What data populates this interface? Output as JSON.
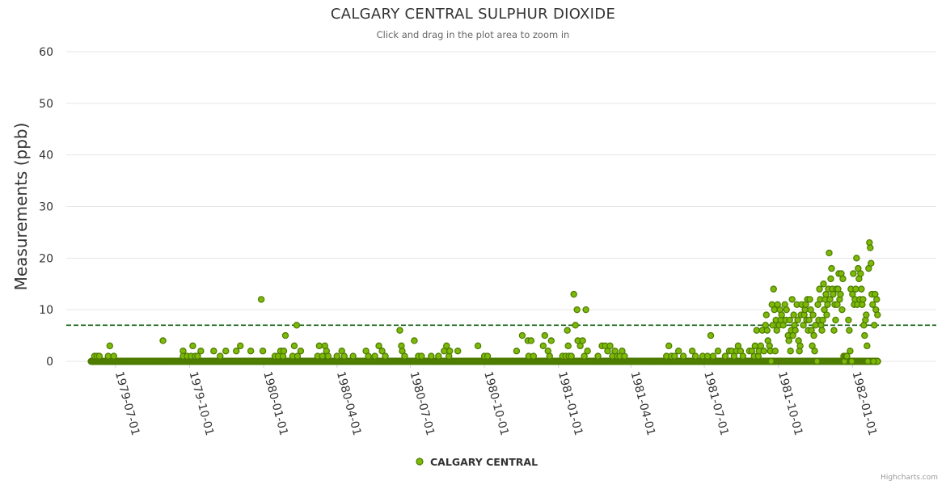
{
  "chart_data": {
    "type": "scatter",
    "title": "CALGARY CENTRAL SULPHUR DIOXIDE",
    "subtitle": "Click and drag in the plot area to zoom in",
    "ylabel": "Measurements (ppb)",
    "xlabel": "",
    "ylim": [
      0,
      60
    ],
    "yticks": [
      0,
      10,
      20,
      30,
      40,
      50,
      60
    ],
    "xlim": [
      "1979-05-01",
      "1982-04-15"
    ],
    "xticks": [
      "1979-07-01",
      "1979-10-01",
      "1980-01-01",
      "1980-04-01",
      "1980-07-01",
      "1980-10-01",
      "1981-01-01",
      "1981-04-01",
      "1981-07-01",
      "1981-10-01",
      "1982-01-01"
    ],
    "grid": true,
    "legend": {
      "position": "bottom-center"
    },
    "threshold_line": {
      "y": 7,
      "style": "dashed",
      "color": "#0a5c0a"
    },
    "colors": {
      "marker_fill": "#7cb908",
      "marker_stroke": "#4d7a00"
    },
    "series": [
      {
        "name": "CALGARY CENTRAL",
        "points": [
          [
            "1979-06-05",
            1
          ],
          [
            "1979-06-08",
            1
          ],
          [
            "1979-06-11",
            1
          ],
          [
            "1979-06-24",
            3
          ],
          [
            "1979-06-22",
            1
          ],
          [
            "1979-06-29",
            1
          ],
          [
            "1979-08-29",
            4
          ],
          [
            "1979-09-23",
            2
          ],
          [
            "1979-09-23",
            1
          ],
          [
            "1979-09-28",
            1
          ],
          [
            "1979-10-03",
            1
          ],
          [
            "1979-10-05",
            3
          ],
          [
            "1979-10-08",
            1
          ],
          [
            "1979-10-11",
            1
          ],
          [
            "1979-10-15",
            2
          ],
          [
            "1979-10-31",
            2
          ],
          [
            "1979-11-08",
            1
          ],
          [
            "1979-11-15",
            2
          ],
          [
            "1979-11-28",
            2
          ],
          [
            "1979-12-03",
            3
          ],
          [
            "1979-12-16",
            2
          ],
          [
            "1979-12-29",
            12
          ],
          [
            "1979-12-31",
            2
          ],
          [
            "1980-01-15",
            1
          ],
          [
            "1980-01-19",
            1
          ],
          [
            "1980-01-22",
            2
          ],
          [
            "1980-01-25",
            1
          ],
          [
            "1980-01-26",
            2
          ],
          [
            "1980-01-28",
            5
          ],
          [
            "1980-02-06",
            1
          ],
          [
            "1980-02-08",
            3
          ],
          [
            "1980-02-11",
            7
          ],
          [
            "1980-02-12",
            1
          ],
          [
            "1980-02-16",
            2
          ],
          [
            "1980-03-08",
            1
          ],
          [
            "1980-03-10",
            3
          ],
          [
            "1980-03-14",
            1
          ],
          [
            "1980-03-17",
            3
          ],
          [
            "1980-03-19",
            2
          ],
          [
            "1980-03-21",
            1
          ],
          [
            "1980-04-01",
            1
          ],
          [
            "1980-04-07",
            2
          ],
          [
            "1980-04-10",
            1
          ],
          [
            "1980-04-21",
            1
          ],
          [
            "1980-05-07",
            2
          ],
          [
            "1980-05-10",
            1
          ],
          [
            "1980-05-18",
            1
          ],
          [
            "1980-05-23",
            3
          ],
          [
            "1980-05-27",
            2
          ],
          [
            "1980-05-31",
            1
          ],
          [
            "1980-06-18",
            6
          ],
          [
            "1980-06-20",
            3
          ],
          [
            "1980-06-21",
            2
          ],
          [
            "1980-06-24",
            1
          ],
          [
            "1980-07-06",
            4
          ],
          [
            "1980-07-11",
            1
          ],
          [
            "1980-07-15",
            1
          ],
          [
            "1980-07-27",
            1
          ],
          [
            "1980-08-05",
            1
          ],
          [
            "1980-08-12",
            2
          ],
          [
            "1980-08-15",
            3
          ],
          [
            "1980-08-18",
            1
          ],
          [
            "1980-08-19",
            2
          ],
          [
            "1980-08-29",
            2
          ],
          [
            "1980-09-23",
            3
          ],
          [
            "1980-10-01",
            1
          ],
          [
            "1980-10-05",
            1
          ],
          [
            "1980-11-10",
            2
          ],
          [
            "1980-11-17",
            5
          ],
          [
            "1980-11-24",
            4
          ],
          [
            "1980-11-25",
            1
          ],
          [
            "1980-11-28",
            4
          ],
          [
            "1980-12-01",
            1
          ],
          [
            "1980-12-13",
            3
          ],
          [
            "1980-12-15",
            5
          ],
          [
            "1980-12-19",
            2
          ],
          [
            "1980-12-21",
            1
          ],
          [
            "1980-12-23",
            4
          ],
          [
            "1981-01-06",
            1
          ],
          [
            "1981-01-10",
            1
          ],
          [
            "1981-01-12",
            6
          ],
          [
            "1981-01-13",
            3
          ],
          [
            "1981-01-14",
            1
          ],
          [
            "1981-01-17",
            1
          ],
          [
            "1981-01-20",
            13
          ],
          [
            "1981-01-22",
            7
          ],
          [
            "1981-01-24",
            10
          ],
          [
            "1981-01-25",
            4
          ],
          [
            "1981-01-28",
            3
          ],
          [
            "1981-01-31",
            4
          ],
          [
            "1981-02-02",
            1
          ],
          [
            "1981-02-04",
            10
          ],
          [
            "1981-02-06",
            2
          ],
          [
            "1981-02-19",
            1
          ],
          [
            "1981-02-24",
            3
          ],
          [
            "1981-02-28",
            3
          ],
          [
            "1981-03-03",
            2
          ],
          [
            "1981-03-06",
            3
          ],
          [
            "1981-03-09",
            1
          ],
          [
            "1981-03-12",
            2
          ],
          [
            "1981-03-15",
            1
          ],
          [
            "1981-03-18",
            1
          ],
          [
            "1981-03-21",
            2
          ],
          [
            "1981-03-24",
            1
          ],
          [
            "1981-05-15",
            1
          ],
          [
            "1981-05-18",
            3
          ],
          [
            "1981-05-21",
            1
          ],
          [
            "1981-05-25",
            1
          ],
          [
            "1981-05-30",
            2
          ],
          [
            "1981-06-05",
            1
          ],
          [
            "1981-06-16",
            2
          ],
          [
            "1981-06-20",
            1
          ],
          [
            "1981-06-29",
            1
          ],
          [
            "1981-07-05",
            1
          ],
          [
            "1981-07-09",
            5
          ],
          [
            "1981-07-12",
            1
          ],
          [
            "1981-07-18",
            2
          ],
          [
            "1981-07-27",
            1
          ],
          [
            "1981-08-01",
            2
          ],
          [
            "1981-08-04",
            2
          ],
          [
            "1981-08-07",
            1
          ],
          [
            "1981-08-10",
            2
          ],
          [
            "1981-08-12",
            3
          ],
          [
            "1981-08-15",
            2
          ],
          [
            "1981-08-18",
            1
          ],
          [
            "1981-08-26",
            2
          ],
          [
            "1981-08-29",
            2
          ],
          [
            "1981-09-01",
            1
          ],
          [
            "1981-09-02",
            3
          ],
          [
            "1981-09-04",
            6
          ],
          [
            "1981-09-06",
            1
          ],
          [
            "1981-09-07",
            2
          ],
          [
            "1981-09-09",
            3
          ],
          [
            "1981-09-11",
            6
          ],
          [
            "1981-09-13",
            2
          ],
          [
            "1981-09-15",
            7
          ],
          [
            "1981-09-16",
            9
          ],
          [
            "1981-09-17",
            6
          ],
          [
            "1981-09-18",
            4
          ],
          [
            "1981-09-20",
            3
          ],
          [
            "1981-09-21",
            2
          ],
          [
            "1981-09-22",
            0
          ],
          [
            "1981-09-23",
            11
          ],
          [
            "1981-09-24",
            7
          ],
          [
            "1981-09-25",
            14
          ],
          [
            "1981-09-26",
            10
          ],
          [
            "1981-09-27",
            2
          ],
          [
            "1981-09-28",
            8
          ],
          [
            "1981-09-29",
            6
          ],
          [
            "1981-09-30",
            11
          ],
          [
            "1981-10-02",
            7
          ],
          [
            "1981-10-03",
            10
          ],
          [
            "1981-10-04",
            8
          ],
          [
            "1981-10-05",
            9
          ],
          [
            "1981-10-07",
            7
          ],
          [
            "1981-10-09",
            11
          ],
          [
            "1981-10-10",
            8
          ],
          [
            "1981-10-11",
            10
          ],
          [
            "1981-10-13",
            5
          ],
          [
            "1981-10-14",
            4
          ],
          [
            "1981-10-15",
            8
          ],
          [
            "1981-10-16",
            2
          ],
          [
            "1981-10-17",
            6
          ],
          [
            "1981-10-18",
            12
          ],
          [
            "1981-10-19",
            5
          ],
          [
            "1981-10-20",
            9
          ],
          [
            "1981-10-21",
            7
          ],
          [
            "1981-10-22",
            6
          ],
          [
            "1981-10-24",
            11
          ],
          [
            "1981-10-25",
            8
          ],
          [
            "1981-10-26",
            4
          ],
          [
            "1981-10-27",
            2
          ],
          [
            "1981-10-28",
            3
          ],
          [
            "1981-10-29",
            9
          ],
          [
            "1981-10-30",
            11
          ],
          [
            "1981-11-01",
            7
          ],
          [
            "1981-11-02",
            9
          ],
          [
            "1981-11-03",
            10
          ],
          [
            "1981-11-04",
            11
          ],
          [
            "1981-11-05",
            8
          ],
          [
            "1981-11-06",
            12
          ],
          [
            "1981-11-07",
            6
          ],
          [
            "1981-11-08",
            8
          ],
          [
            "1981-11-09",
            12
          ],
          [
            "1981-11-10",
            10
          ],
          [
            "1981-11-11",
            6
          ],
          [
            "1981-11-12",
            3
          ],
          [
            "1981-11-13",
            9
          ],
          [
            "1981-11-14",
            5
          ],
          [
            "1981-11-15",
            2
          ],
          [
            "1981-11-16",
            7
          ],
          [
            "1981-11-17",
            0
          ],
          [
            "1981-11-18",
            0
          ],
          [
            "1981-11-19",
            11
          ],
          [
            "1981-11-20",
            8
          ],
          [
            "1981-11-21",
            14
          ],
          [
            "1981-11-22",
            12
          ],
          [
            "1981-11-23",
            7
          ],
          [
            "1981-11-24",
            6
          ],
          [
            "1981-11-25",
            8
          ],
          [
            "1981-11-26",
            15
          ],
          [
            "1981-11-27",
            10
          ],
          [
            "1981-11-28",
            12
          ],
          [
            "1981-11-29",
            13
          ],
          [
            "1981-11-30",
            9
          ],
          [
            "1981-12-01",
            11
          ],
          [
            "1981-12-02",
            14
          ],
          [
            "1981-12-03",
            21
          ],
          [
            "1981-12-04",
            12
          ],
          [
            "1981-12-05",
            16
          ],
          [
            "1981-12-06",
            18
          ],
          [
            "1981-12-07",
            14
          ],
          [
            "1981-12-08",
            13
          ],
          [
            "1981-12-09",
            6
          ],
          [
            "1981-12-10",
            11
          ],
          [
            "1981-12-11",
            8
          ],
          [
            "1981-12-12",
            14
          ],
          [
            "1981-12-13",
            11
          ],
          [
            "1981-12-14",
            14
          ],
          [
            "1981-12-15",
            17
          ],
          [
            "1981-12-16",
            12
          ],
          [
            "1981-12-17",
            13
          ],
          [
            "1981-12-18",
            17
          ],
          [
            "1981-12-19",
            10
          ],
          [
            "1981-12-20",
            16
          ],
          [
            "1981-12-21",
            1
          ],
          [
            "1981-12-22",
            0
          ],
          [
            "1981-12-23",
            1
          ],
          [
            "1981-12-24",
            1
          ],
          [
            "1981-12-25",
            1
          ],
          [
            "1981-12-27",
            8
          ],
          [
            "1981-12-28",
            6
          ],
          [
            "1981-12-29",
            2
          ],
          [
            "1981-12-30",
            14
          ],
          [
            "1981-12-31",
            0
          ],
          [
            "1982-01-01",
            13
          ],
          [
            "1982-01-02",
            17
          ],
          [
            "1982-01-03",
            11
          ],
          [
            "1982-01-04",
            12
          ],
          [
            "1982-01-05",
            14
          ],
          [
            "1982-01-06",
            20
          ],
          [
            "1982-01-07",
            11
          ],
          [
            "1982-01-08",
            18
          ],
          [
            "1982-01-09",
            16
          ],
          [
            "1982-01-10",
            12
          ],
          [
            "1982-01-11",
            17
          ],
          [
            "1982-01-12",
            14
          ],
          [
            "1982-01-13",
            11
          ],
          [
            "1982-01-14",
            12
          ],
          [
            "1982-01-15",
            7
          ],
          [
            "1982-01-16",
            5
          ],
          [
            "1982-01-17",
            8
          ],
          [
            "1982-01-18",
            9
          ],
          [
            "1982-01-19",
            3
          ],
          [
            "1982-01-20",
            0
          ],
          [
            "1982-01-21",
            18
          ],
          [
            "1982-01-22",
            23
          ],
          [
            "1982-01-23",
            22
          ],
          [
            "1982-01-24",
            19
          ],
          [
            "1982-01-25",
            13
          ],
          [
            "1982-01-26",
            11
          ],
          [
            "1982-01-27",
            0
          ],
          [
            "1982-01-28",
            7
          ],
          [
            "1982-01-29",
            13
          ],
          [
            "1982-01-30",
            10
          ],
          [
            "1982-01-31",
            12
          ],
          [
            "1982-02-01",
            9
          ]
        ]
      }
    ]
  }
}
